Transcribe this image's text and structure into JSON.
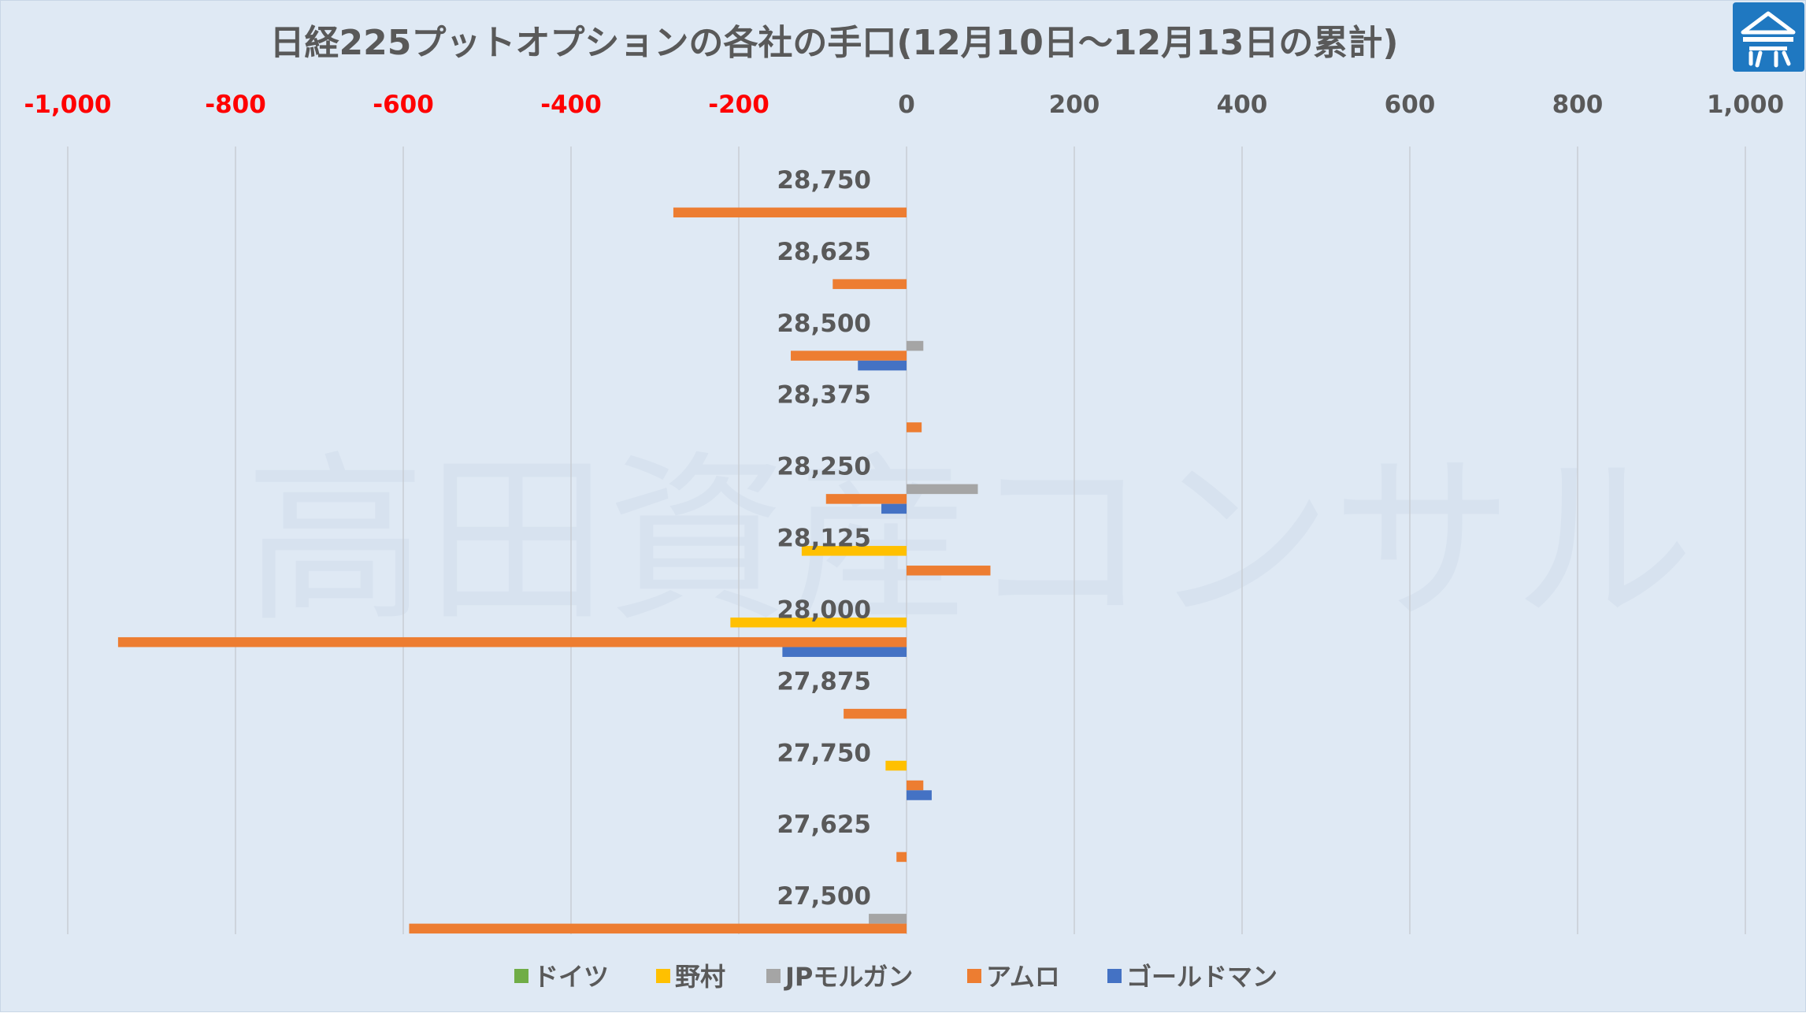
{
  "chart_data": {
    "type": "bar",
    "orientation": "horizontal",
    "title": "日経225プットオプションの各社の手口(12月10日〜12月13日の累計)",
    "xlabel": "",
    "ylabel": "",
    "xlim": [
      -1000,
      1000
    ],
    "x_ticks": [
      -1000,
      -800,
      -600,
      -400,
      -200,
      0,
      200,
      400,
      600,
      800,
      1000
    ],
    "x_tick_labels": [
      "-1,000",
      "-800",
      "-600",
      "-400",
      "-200",
      "0",
      "200",
      "400",
      "600",
      "800",
      "1,000"
    ],
    "negative_tick_color": "#ff0000",
    "positive_tick_color": "#595959",
    "categories": [
      "28,750",
      "28,625",
      "28,500",
      "28,375",
      "28,250",
      "28,125",
      "28,000",
      "27,875",
      "27,750",
      "27,625",
      "27,500"
    ],
    "series": [
      {
        "name": "ドイツ",
        "color": "#70ad47",
        "values": [
          0,
          0,
          0,
          0,
          0,
          0,
          0,
          0,
          0,
          0,
          0
        ]
      },
      {
        "name": "野村",
        "color": "#ffc000",
        "values": [
          0,
          0,
          0,
          0,
          0,
          -125,
          -210,
          0,
          -25,
          0,
          0
        ]
      },
      {
        "name": "JPモルガン",
        "color": "#a5a5a5",
        "values": [
          0,
          0,
          20,
          0,
          85,
          0,
          0,
          0,
          0,
          0,
          -45
        ]
      },
      {
        "name": "アムロ",
        "color": "#ed7d31",
        "values": [
          -278,
          -88,
          -138,
          18,
          -96,
          100,
          -940,
          -75,
          20,
          -12,
          -593
        ]
      },
      {
        "name": "ゴールドマン",
        "color": "#4472c4",
        "values": [
          0,
          0,
          -58,
          0,
          -30,
          0,
          -148,
          0,
          30,
          0,
          0
        ]
      }
    ],
    "grid": "vertical",
    "legend_position": "bottom",
    "watermark": "高田資産コンサル"
  },
  "logo": {
    "name": "company-logo",
    "bg_color": "#1f78c1"
  }
}
